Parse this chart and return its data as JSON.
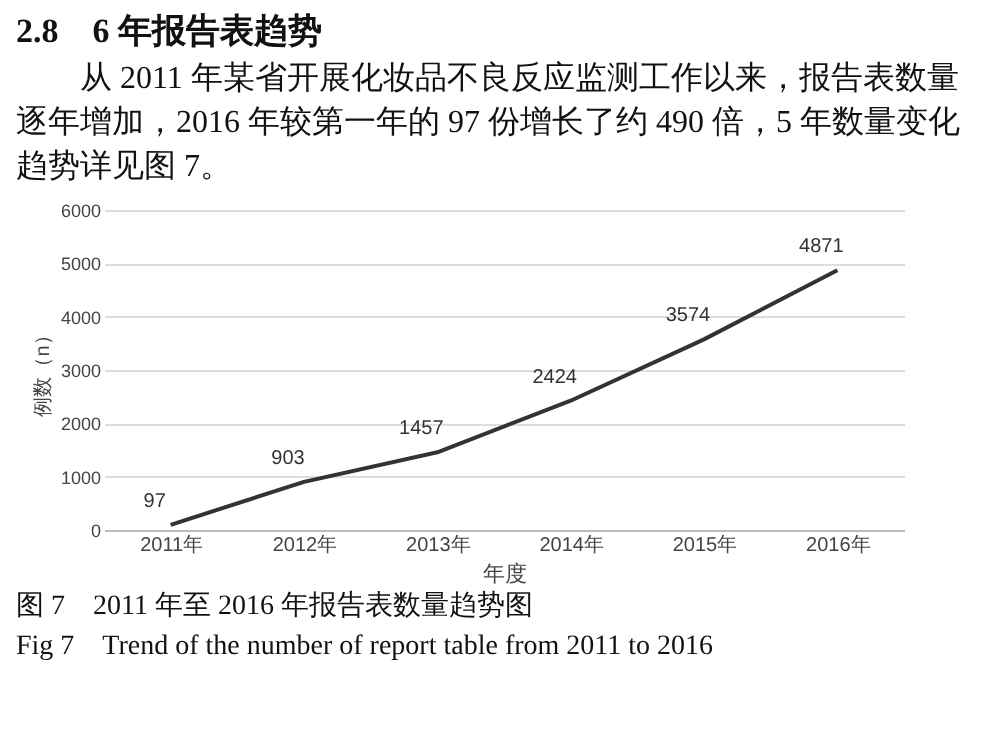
{
  "chart_data": {
    "type": "line",
    "title": "2.8　6 年报告表趋势",
    "subtitle": "从 2011 年某省开展化妆品不良反应监测工作以来，报告表数量逐年增加，2016 年较第一年的 97 份增长了约 490 倍，5 年数量变化趋势详见图 7。",
    "xlabel": "年度",
    "ylabel": "例数（n）",
    "categories": [
      "2011年",
      "2012年",
      "2013年",
      "2014年",
      "2015年",
      "2016年"
    ],
    "series": [
      {
        "color": "#333333",
        "values": [
          97,
          903,
          1457,
          2424,
          3574,
          4871
        ]
      }
    ],
    "ylim": [
      0,
      6000
    ],
    "yticks": [
      0,
      1000,
      2000,
      3000,
      4000,
      5000,
      6000
    ],
    "grid": "y",
    "data_labels": true,
    "marker": "none",
    "line_style": "solid",
    "annotations": [
      "图 7　2011 年至 2016 年报告表数量趋势图",
      "Fig 7　Trend of the number of report table from 2011 to 2016"
    ]
  }
}
